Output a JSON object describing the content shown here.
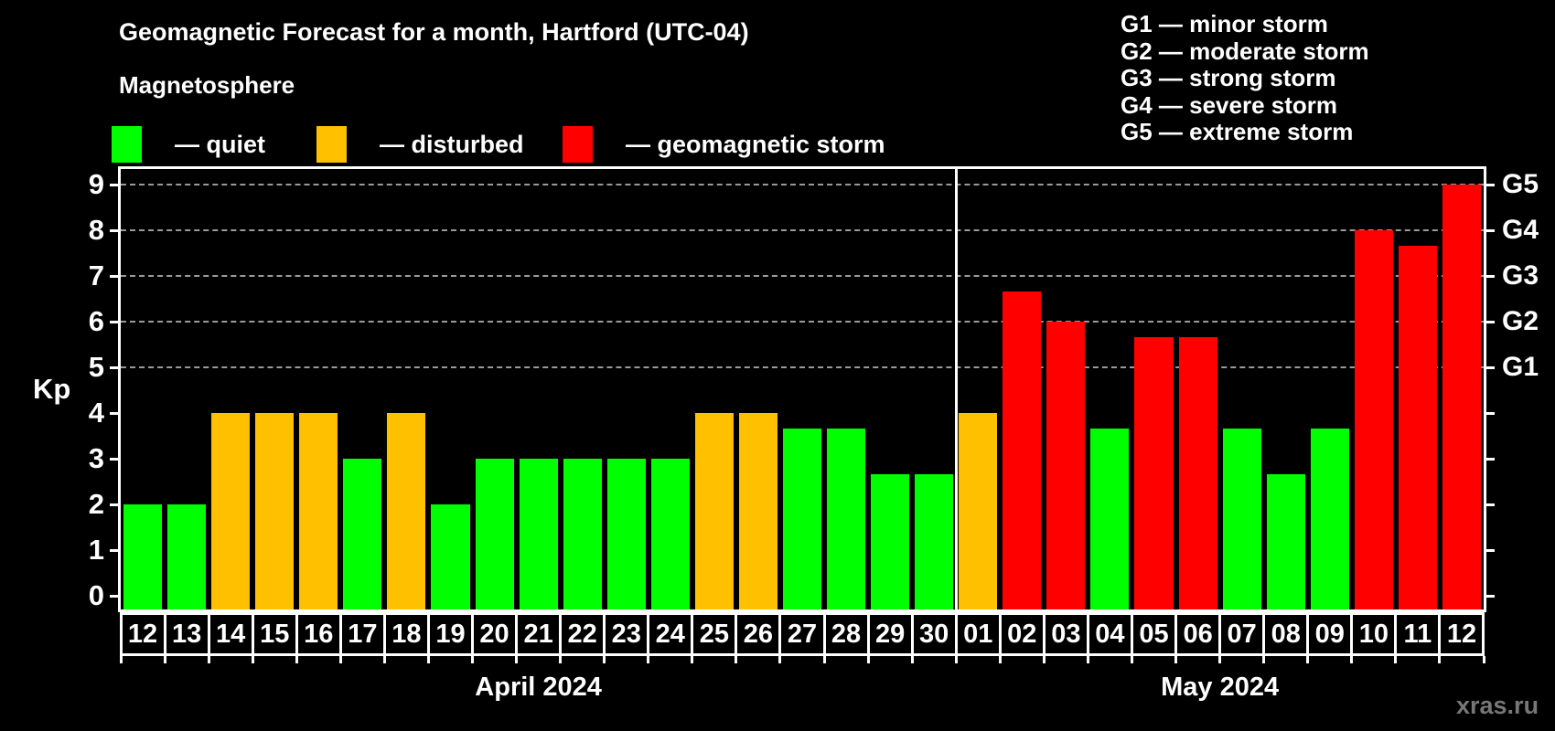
{
  "title": "Geomagnetic Forecast for a month, Hartford (UTC-04)",
  "subtitle": "Magnetosphere",
  "legend": {
    "items": [
      {
        "key": "quiet",
        "label": "— quiet",
        "color": "#00ff00"
      },
      {
        "key": "disturbed",
        "label": "— disturbed",
        "color": "#ffc000"
      },
      {
        "key": "storm",
        "label": "— geomagnetic storm",
        "color": "#ff0000"
      }
    ]
  },
  "storm_scale_legend": [
    "G1 — minor storm",
    "G2 — moderate storm",
    "G3 — strong storm",
    "G4 — severe storm",
    "G5 — extreme storm"
  ],
  "watermark": "xras.ru",
  "chart_data": {
    "type": "bar",
    "ylabel": "Kp",
    "ylim": [
      0,
      9
    ],
    "yticks": [
      0,
      1,
      2,
      3,
      4,
      5,
      6,
      7,
      8,
      9
    ],
    "gridlines_at": [
      5,
      6,
      7,
      8,
      9
    ],
    "grid": "dashed, horizontal, only at storm levels G1–G5",
    "right_axis_labels": [
      {
        "kp": 5,
        "label": "G1"
      },
      {
        "kp": 6,
        "label": "G2"
      },
      {
        "kp": 7,
        "label": "G3"
      },
      {
        "kp": 8,
        "label": "G4"
      },
      {
        "kp": 9,
        "label": "G5"
      }
    ],
    "colors": {
      "quiet": "#00ff00",
      "disturbed": "#ffc000",
      "storm": "#ff0000"
    },
    "months": [
      {
        "label": "April 2024",
        "short": "apr",
        "days": 19
      },
      {
        "label": "May 2024",
        "short": "may",
        "days": 12
      }
    ],
    "bars": [
      {
        "day": "12",
        "kp": 2,
        "status": "quiet"
      },
      {
        "day": "13",
        "kp": 2,
        "status": "quiet"
      },
      {
        "day": "14",
        "kp": 4,
        "status": "disturbed"
      },
      {
        "day": "15",
        "kp": 4,
        "status": "disturbed"
      },
      {
        "day": "16",
        "kp": 4,
        "status": "disturbed"
      },
      {
        "day": "17",
        "kp": 3,
        "status": "quiet"
      },
      {
        "day": "18",
        "kp": 4,
        "status": "disturbed"
      },
      {
        "day": "19",
        "kp": 2,
        "status": "quiet"
      },
      {
        "day": "20",
        "kp": 3,
        "status": "quiet"
      },
      {
        "day": "21",
        "kp": 3,
        "status": "quiet"
      },
      {
        "day": "22",
        "kp": 3,
        "status": "quiet"
      },
      {
        "day": "23",
        "kp": 3,
        "status": "quiet"
      },
      {
        "day": "24",
        "kp": 3,
        "status": "quiet"
      },
      {
        "day": "25",
        "kp": 4,
        "status": "disturbed"
      },
      {
        "day": "26",
        "kp": 4,
        "status": "disturbed"
      },
      {
        "day": "27",
        "kp": 3.67,
        "status": "quiet"
      },
      {
        "day": "28",
        "kp": 3.67,
        "status": "quiet"
      },
      {
        "day": "29",
        "kp": 2.67,
        "status": "quiet"
      },
      {
        "day": "30",
        "kp": 2.67,
        "status": "quiet"
      },
      {
        "day": "01",
        "kp": 4,
        "status": "disturbed"
      },
      {
        "day": "02",
        "kp": 6.67,
        "status": "storm"
      },
      {
        "day": "03",
        "kp": 6,
        "status": "storm"
      },
      {
        "day": "04",
        "kp": 3.67,
        "status": "quiet"
      },
      {
        "day": "05",
        "kp": 5.67,
        "status": "storm"
      },
      {
        "day": "06",
        "kp": 5.67,
        "status": "storm"
      },
      {
        "day": "07",
        "kp": 3.67,
        "status": "quiet"
      },
      {
        "day": "08",
        "kp": 2.67,
        "status": "quiet"
      },
      {
        "day": "09",
        "kp": 3.67,
        "status": "quiet"
      },
      {
        "day": "10",
        "kp": 8,
        "status": "storm"
      },
      {
        "day": "11",
        "kp": 7.67,
        "status": "storm"
      },
      {
        "day": "12",
        "kp": 9,
        "status": "storm"
      }
    ]
  }
}
